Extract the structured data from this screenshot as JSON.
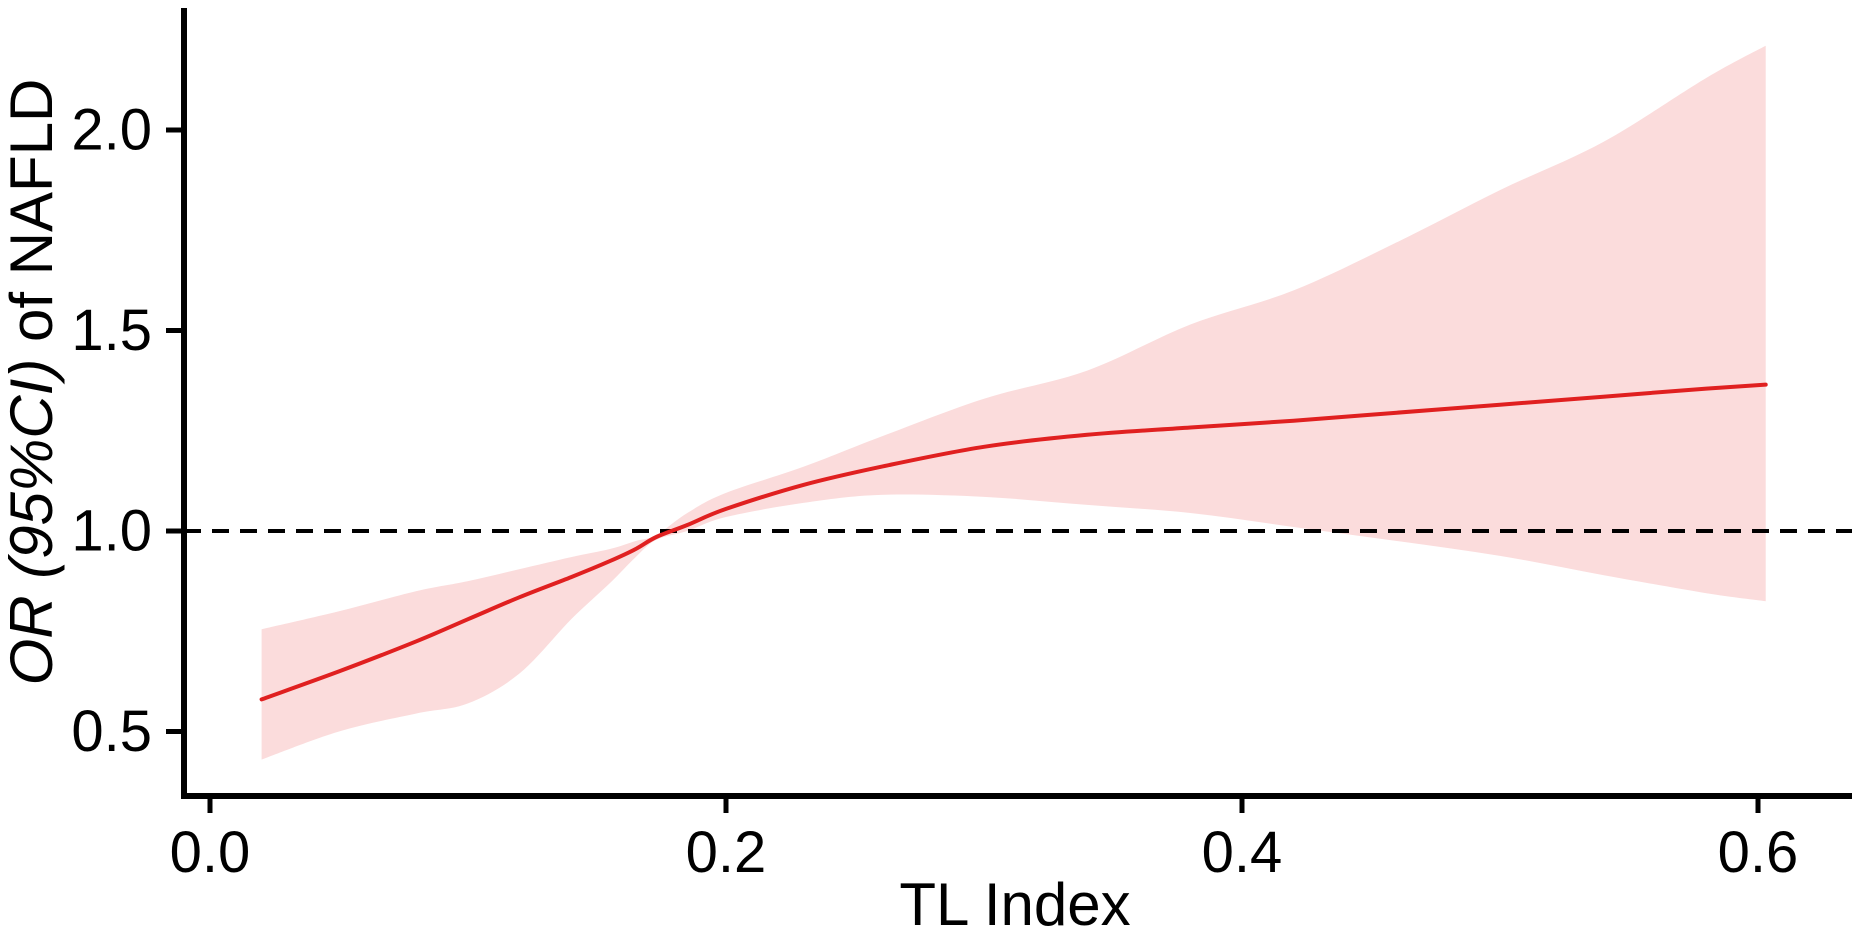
{
  "figure": {
    "background": "#ffffff",
    "x_axis": {
      "label": "TL Index",
      "ticks": [
        "0.0",
        "0.2",
        "0.4",
        "0.6"
      ],
      "tick_values": [
        0.0,
        0.2,
        0.4,
        0.6
      ]
    },
    "y_axis": {
      "label_plain": "OR (95%CI) of NAFLD",
      "label_parts": [
        {
          "text": "OR (95%CI)",
          "style": "italic"
        },
        {
          "text": " of NAFLD",
          "style": "normal"
        }
      ],
      "ticks": [
        "0.5",
        "1.0",
        "1.5",
        "2.0"
      ],
      "tick_values": [
        0.5,
        1.0,
        1.5,
        2.0
      ]
    },
    "colors": {
      "curve": "#e02020",
      "band": "#fbdcdc",
      "reference": "#000000",
      "axis": "#000000",
      "text": "#000000"
    }
  },
  "chart_data": {
    "type": "line",
    "title": "",
    "xlabel": "TL Index",
    "ylabel": "OR (95%CI) of NAFLD",
    "xlim": [
      -0.01,
      0.637
    ],
    "ylim": [
      0.34,
      2.3
    ],
    "grid": false,
    "legend": "none",
    "reference_y": 1.0,
    "x": [
      0.02,
      0.05,
      0.08,
      0.1,
      0.12,
      0.14,
      0.155,
      0.165,
      0.173,
      0.185,
      0.2,
      0.23,
      0.26,
      0.3,
      0.34,
      0.38,
      0.42,
      0.46,
      0.5,
      0.54,
      0.58,
      0.603
    ],
    "series": [
      {
        "name": "OR",
        "values": [
          0.58,
          0.65,
          0.725,
          0.78,
          0.835,
          0.885,
          0.925,
          0.955,
          0.985,
          1.015,
          1.055,
          1.115,
          1.16,
          1.21,
          1.24,
          1.258,
          1.275,
          1.295,
          1.315,
          1.335,
          1.355,
          1.365
        ]
      },
      {
        "name": "95% CI upper",
        "values": [
          0.755,
          0.8,
          0.85,
          0.875,
          0.905,
          0.935,
          0.955,
          0.975,
          0.99,
          1.045,
          1.095,
          1.16,
          1.235,
          1.33,
          1.4,
          1.515,
          1.6,
          1.72,
          1.85,
          1.97,
          2.13,
          2.21
        ]
      },
      {
        "name": "95% CI lower",
        "values": [
          0.43,
          0.5,
          0.545,
          0.57,
          0.645,
          0.78,
          0.87,
          0.935,
          0.978,
          1.0,
          1.035,
          1.07,
          1.09,
          1.085,
          1.065,
          1.045,
          1.01,
          0.975,
          0.938,
          0.89,
          0.845,
          0.825
        ]
      }
    ]
  }
}
